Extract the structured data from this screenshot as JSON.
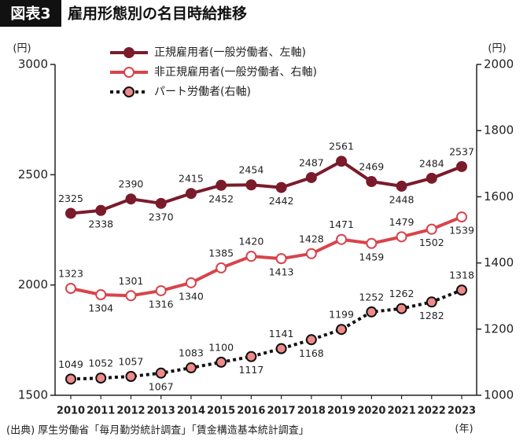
{
  "chart_data": {
    "type": "line",
    "figure_label": "図表3",
    "title": "雇用形態別の名目時給推移",
    "y_label": "(円)",
    "y2_label": "(円)",
    "x_label": "(年)",
    "source": "(出典) 厚生労働省「毎月勤労統計調査」「賃金構造基本統計調査」",
    "categories": [
      "2010",
      "2011",
      "2012",
      "2013",
      "2014",
      "2015",
      "2016",
      "2017",
      "2018",
      "2019",
      "2020",
      "2021",
      "2022",
      "2023"
    ],
    "ylim": [
      1500,
      3000
    ],
    "yticks": [
      1500,
      2000,
      2500,
      3000
    ],
    "y2lim": [
      1000,
      2000
    ],
    "y2ticks": [
      1000,
      1200,
      1400,
      1600,
      1800,
      2000
    ],
    "series": [
      {
        "name": "正規雇用者(一般労働者、左軸)",
        "color": "#7a1b2b",
        "line_style": "solid",
        "marker_fill": "#7a1b2b",
        "values": [
          2325,
          2338,
          2390,
          2370,
          2415,
          2452,
          2454,
          2442,
          2487,
          2561,
          2469,
          2448,
          2484,
          2537
        ]
      },
      {
        "name": "非正規雇用者(一般労働者、右軸)",
        "color": "#d9434b",
        "line_style": "solid",
        "marker_fill": "#ffffff",
        "axis": "y2",
        "values": [
          1323,
          1304,
          1301,
          1316,
          1340,
          1385,
          1420,
          1413,
          1428,
          1471,
          1459,
          1479,
          1502,
          1539
        ]
      },
      {
        "name": "パート労働者(右軸)",
        "color": "#111111",
        "line_style": "dotted",
        "marker_fill": "#f08a8a",
        "marker_edge": "#d9434b",
        "axis": "y2",
        "values": [
          1049,
          1052,
          1057,
          1067,
          1083,
          1100,
          1117,
          1141,
          1168,
          1199,
          1252,
          1262,
          1282,
          1318
        ]
      }
    ]
  }
}
